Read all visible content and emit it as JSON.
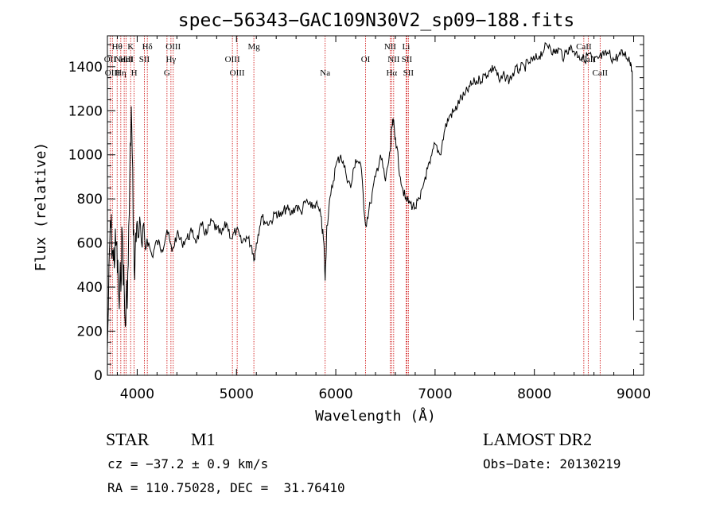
{
  "chart_data": {
    "type": "line",
    "title": "spec−56343−GAC109N30V2_sp09−188.fits",
    "xlabel": "Wavelength (Å)",
    "ylabel": "Flux (relative)",
    "xlim": [
      3700,
      9100
    ],
    "ylim": [
      0,
      1540
    ],
    "xticks": [
      4000,
      5000,
      6000,
      7000,
      8000,
      9000
    ],
    "yticks": [
      0,
      200,
      400,
      600,
      800,
      1000,
      1200,
      1400
    ],
    "grid": false,
    "series": [
      {
        "x": [
          3700,
          3730,
          3760,
          3790,
          3820,
          3850,
          3880,
          3910,
          3940,
          3970,
          4000,
          4050,
          4100,
          4150,
          4200,
          4250,
          4300,
          4350,
          4400,
          4450,
          4500,
          4550,
          4600,
          4650,
          4700,
          4750,
          4800,
          4850,
          4900,
          4950,
          5000,
          5050,
          5100,
          5150,
          5180,
          5200,
          5250,
          5300,
          5350,
          5400,
          5450,
          5500,
          5550,
          5600,
          5650,
          5700,
          5750,
          5800,
          5850,
          5880,
          5893,
          5910,
          5950,
          6000,
          6050,
          6100,
          6150,
          6200,
          6250,
          6300,
          6350,
          6400,
          6450,
          6500,
          6550,
          6563,
          6580,
          6600,
          6650,
          6700,
          6750,
          6800,
          6850,
          6900,
          6950,
          7000,
          7050,
          7100,
          7150,
          7200,
          7250,
          7300,
          7350,
          7400,
          7450,
          7500,
          7550,
          7600,
          7650,
          7700,
          7750,
          7800,
          7850,
          7900,
          7950,
          8000,
          8050,
          8100,
          8150,
          8200,
          8250,
          8300,
          8350,
          8400,
          8450,
          8500,
          8550,
          8600,
          8650,
          8700,
          8750,
          8800,
          8850,
          8900,
          8950,
          8970,
          8985,
          9000
        ],
        "y": [
          120,
          700,
          520,
          600,
          300,
          650,
          220,
          500,
          1220,
          480,
          700,
          580,
          620,
          540,
          610,
          570,
          660,
          560,
          640,
          600,
          620,
          650,
          610,
          680,
          640,
          700,
          660,
          640,
          690,
          620,
          660,
          600,
          630,
          590,
          530,
          600,
          720,
          690,
          700,
          740,
          720,
          760,
          730,
          770,
          740,
          790,
          760,
          780,
          720,
          600,
          430,
          680,
          820,
          950,
          1000,
          920,
          850,
          980,
          960,
          680,
          780,
          900,
          1000,
          880,
          1020,
          1120,
          1150,
          1080,
          900,
          800,
          780,
          760,
          800,
          900,
          960,
          1050,
          1000,
          1120,
          1180,
          1200,
          1250,
          1270,
          1310,
          1330,
          1340,
          1360,
          1380,
          1400,
          1330,
          1360,
          1340,
          1380,
          1390,
          1400,
          1420,
          1430,
          1450,
          1480,
          1500,
          1460,
          1480,
          1440,
          1490,
          1470,
          1450,
          1430,
          1460,
          1420,
          1440,
          1450,
          1460,
          1430,
          1450,
          1460,
          1440,
          1420,
          1380,
          250
        ]
      }
    ],
    "lines": [
      {
        "x": 3727,
        "labels": [
          "OII"
        ],
        "row": [
          2
        ]
      },
      {
        "x": 3750,
        "labels": [
          "OIII"
        ],
        "row": [
          3
        ]
      },
      {
        "x": 3798,
        "labels": [
          "Hθ"
        ],
        "row": [
          1
        ]
      },
      {
        "x": 3835,
        "labels": [
          "Hη"
        ],
        "row": [
          3
        ]
      },
      {
        "x": 3869,
        "labels": [
          "NeIII"
        ],
        "row": [
          2
        ]
      },
      {
        "x": 3889,
        "labels": [
          "HeI"
        ],
        "row": [
          2
        ]
      },
      {
        "x": 3934,
        "labels": [
          "K"
        ],
        "row": [
          1
        ]
      },
      {
        "x": 3969,
        "labels": [
          "H"
        ],
        "row": [
          3
        ]
      },
      {
        "x": 4072,
        "labels": [
          "SII"
        ],
        "row": [
          2
        ]
      },
      {
        "x": 4102,
        "labels": [
          "Hδ"
        ],
        "row": [
          1
        ]
      },
      {
        "x": 4300,
        "labels": [
          "G"
        ],
        "row": [
          3
        ]
      },
      {
        "x": 4340,
        "labels": [
          "Hγ"
        ],
        "row": [
          2
        ]
      },
      {
        "x": 4363,
        "labels": [
          "OIII"
        ],
        "row": [
          1
        ]
      },
      {
        "x": 4959,
        "labels": [
          "OIII"
        ],
        "row": [
          2
        ]
      },
      {
        "x": 5007,
        "labels": [
          "OIII"
        ],
        "row": [
          3
        ]
      },
      {
        "x": 5175,
        "labels": [
          "Mg"
        ],
        "row": [
          1
        ]
      },
      {
        "x": 5893,
        "labels": [
          "Na"
        ],
        "row": [
          3
        ]
      },
      {
        "x": 6300,
        "labels": [
          "OI"
        ],
        "row": [
          2
        ]
      },
      {
        "x": 6548,
        "labels": [
          "NII"
        ],
        "row": [
          1
        ]
      },
      {
        "x": 6563,
        "labels": [
          "Hα"
        ],
        "row": [
          3
        ]
      },
      {
        "x": 6583,
        "labels": [
          "NII"
        ],
        "row": [
          2
        ]
      },
      {
        "x": 6708,
        "labels": [
          "Li"
        ],
        "row": [
          1
        ]
      },
      {
        "x": 6716,
        "labels": [
          "SII"
        ],
        "row": [
          2
        ]
      },
      {
        "x": 6731,
        "labels": [
          "SII"
        ],
        "row": [
          3
        ]
      },
      {
        "x": 8498,
        "labels": [
          "CaII"
        ],
        "row": [
          1
        ]
      },
      {
        "x": 8542,
        "labels": [
          "CaII"
        ],
        "row": [
          2
        ]
      },
      {
        "x": 8662,
        "labels": [
          "CaII"
        ],
        "row": [
          3
        ]
      }
    ]
  },
  "info": {
    "object_class": "STAR",
    "subclass": "M1",
    "cz": "cz = −37.2 ± 0.9 km/s",
    "radec": "RA = 110.75028, DEC =  31.76410",
    "survey": "LAMOST DR2",
    "obs_date": "Obs−Date: 20130219"
  },
  "colors": {
    "line": "#000000",
    "marker": "#cc0000",
    "axis": "#000000"
  }
}
